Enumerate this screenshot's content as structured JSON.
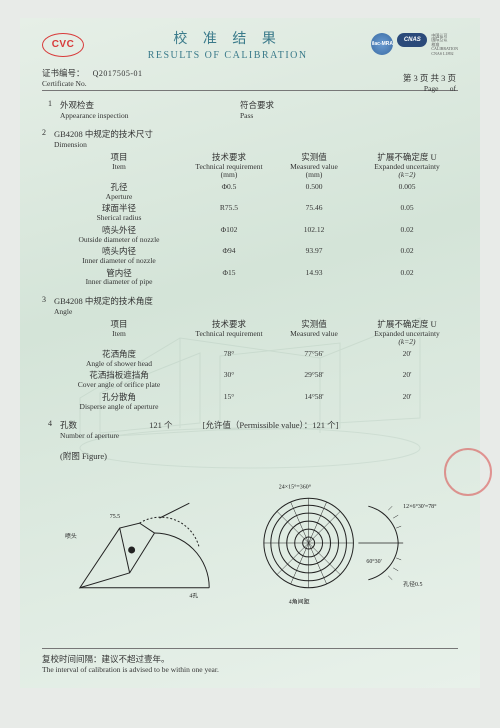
{
  "header": {
    "logo_text": "CVC",
    "title_cn": "校 准 结 果",
    "title_en": "RESULTS OF CALIBRATION",
    "ilac": "ilac-MRA",
    "cnas": "CNAS",
    "cnas_sub1": "中国认可",
    "cnas_sub2": "国际互认",
    "cnas_sub3": "校准",
    "cnas_sub4": "CALIBRATION",
    "cnas_sub5": "CNAS L1892"
  },
  "cert": {
    "label_cn": "证书编号：",
    "label_en": "Certificate No.",
    "number": "Q2017505-01"
  },
  "page_info": {
    "cn": "第 3 页 共 3 页",
    "en_l": "Page",
    "en_r": "of"
  },
  "sections": {
    "s1": {
      "idx": "1",
      "title_cn": "外观检查",
      "title_en": "Appearance inspection",
      "result_cn": "符合要求",
      "result_en": "Pass"
    },
    "s2": {
      "idx": "2",
      "title_cn": "GB4208 中规定的技术尺寸",
      "title_en": "Dimension",
      "head": {
        "item_cn": "项目",
        "item_en": "Item",
        "req_cn": "技术要求",
        "req_en": "Technical requirement",
        "req_unit": "(mm)",
        "meas_cn": "实测值",
        "meas_en": "Measured value",
        "meas_unit": "(mm)",
        "unc_cn": "扩展不确定度 U",
        "unc_en": "Expanded uncertainty",
        "unc_unit": "(k=2)"
      },
      "rows": [
        {
          "name_cn": "孔径",
          "name_en": "Aperture",
          "req": "Φ0.5",
          "meas": "0.500",
          "unc": "0.005"
        },
        {
          "name_cn": "球面半径",
          "name_en": "Sherical radius",
          "req": "R75.5",
          "meas": "75.46",
          "unc": "0.05"
        },
        {
          "name_cn": "喷头外径",
          "name_en": "Outside diameter of nozzle",
          "req": "Φ102",
          "meas": "102.12",
          "unc": "0.02"
        },
        {
          "name_cn": "喷头内径",
          "name_en": "Inner diameter of nozzle",
          "req": "Φ94",
          "meas": "93.97",
          "unc": "0.02"
        },
        {
          "name_cn": "管内径",
          "name_en": "Inner diameter of pipe",
          "req": "Φ15",
          "meas": "14.93",
          "unc": "0.02"
        }
      ]
    },
    "s3": {
      "idx": "3",
      "title_cn": "GB4208 中规定的技术角度",
      "title_en": "Angle",
      "head": {
        "item_cn": "项目",
        "item_en": "Item",
        "req_cn": "技术要求",
        "req_en": "Technical requirement",
        "meas_cn": "实测值",
        "meas_en": "Measured value",
        "unc_cn": "扩展不确定度 U",
        "unc_en": "Expanded uncertainty",
        "unc_unit": "(k=2)"
      },
      "rows": [
        {
          "name_cn": "花洒角度",
          "name_en": "Angle of shower head",
          "req": "78°",
          "meas": "77°56'",
          "unc": "20'"
        },
        {
          "name_cn": "花洒挡板遮挡角",
          "name_en": "Cover angle of orifice plate",
          "req": "30°",
          "meas": "29°58'",
          "unc": "20'"
        },
        {
          "name_cn": "孔分散角",
          "name_en": "Disperse angle of aperture",
          "req": "15°",
          "meas": "14°58'",
          "unc": "20'"
        }
      ]
    },
    "s4": {
      "idx": "4",
      "title_cn": "孔数",
      "title_en": "Number of aperture",
      "count": "121 个",
      "perm_label": "[允许值（Permissible value）：121 个]"
    }
  },
  "fig_label": "(附图 Figure)",
  "fig_annot": {
    "a1": "24×15°=360°",
    "a2": "12×6°30'=78°",
    "a3": "60°30'",
    "a4": "孔径0.5",
    "a5": "4角间距",
    "a6": "喷头",
    "a7": "4孔",
    "a8": "75.5"
  },
  "footer": {
    "cn": "复校时间间隔：建议不超过壹年。",
    "en": "The interval of calibration is advised to be within one year."
  },
  "colors": {
    "accent": "#3a7a8a",
    "red": "#d83a3a",
    "text": "#333333"
  }
}
